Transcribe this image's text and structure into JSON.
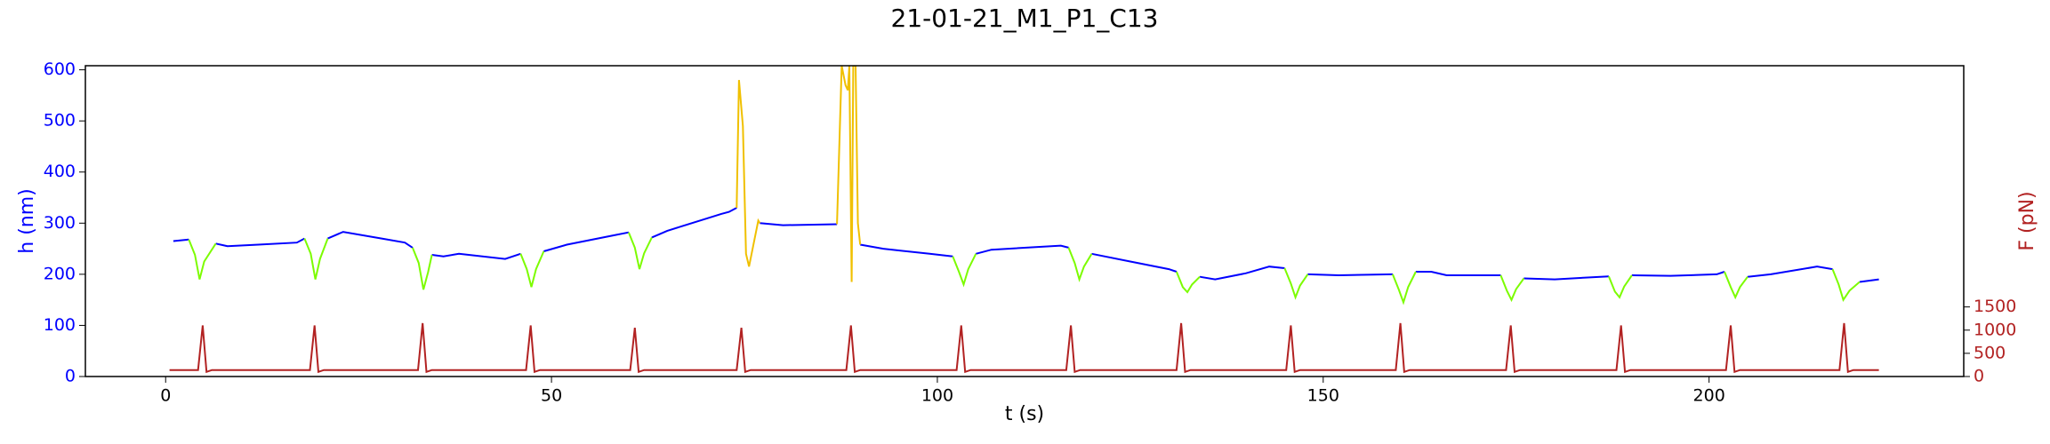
{
  "chart_data": {
    "type": "line",
    "title": "21-01-21_M1_P1_C13",
    "x_label": "t (s)",
    "y_label": "h (nm)",
    "y2_label": "F (pN)",
    "xlim": [
      -10.4,
      233
    ],
    "xticks": [
      0,
      50,
      100,
      150,
      200
    ],
    "ylim": [
      0,
      608
    ],
    "yticks": [
      0,
      100,
      200,
      300,
      400,
      500,
      600
    ],
    "y2lim": [
      0,
      6700
    ],
    "y2ticks": [
      0,
      500,
      1000,
      1500
    ],
    "y_color": "#0000ff",
    "y2_color": "#b22222",
    "series": [
      {
        "color": "#0000ff",
        "axis": "y",
        "x": [
          1,
          3,
          5,
          6.5,
          8,
          12,
          17,
          18,
          20,
          21,
          23,
          28,
          31,
          32,
          33,
          34.5,
          36,
          38,
          44,
          46,
          47,
          49,
          52,
          58,
          60,
          61,
          63,
          65,
          72,
          73,
          74,
          75.5,
          77,
          80,
          87,
          88.5,
          90,
          93,
          99,
          102,
          103,
          105,
          107,
          116,
          117,
          118,
          120,
          125,
          130,
          131,
          132,
          134,
          136,
          140,
          143,
          145,
          146,
          148,
          152,
          159,
          160,
          162,
          164,
          166,
          173,
          174,
          176,
          180,
          187,
          188,
          190,
          195,
          201,
          202,
          203,
          205,
          208,
          214,
          216,
          217,
          219.5,
          222
        ],
        "values": [
          265,
          268,
          null,
          260,
          255,
          258,
          262,
          270,
          null,
          270,
          283,
          270,
          262,
          252,
          null,
          238,
          235,
          240,
          230,
          240,
          null,
          245,
          258,
          276,
          282,
          null,
          272,
          285,
          318,
          322,
          330,
          null,
          300,
          296,
          298,
          null,
          258,
          250,
          240,
          235,
          null,
          240,
          248,
          256,
          252,
          null,
          240,
          225,
          210,
          205,
          null,
          195,
          190,
          202,
          215,
          212,
          null,
          200,
          198,
          200,
          null,
          205,
          205,
          198,
          198,
          null,
          192,
          190,
          196,
          null,
          198,
          197,
          200,
          205,
          null,
          195,
          200,
          215,
          210,
          null,
          185,
          190
        ]
      },
      {
        "color": "#7cfc00",
        "axis": "y",
        "x": [
          3,
          3.8,
          4.4,
          5,
          6.5,
          7,
          18,
          18.8,
          19.4,
          20,
          21,
          22,
          32,
          32.8,
          33.4,
          34,
          34.5,
          35,
          46,
          46.8,
          47.4,
          48,
          49,
          50,
          60,
          60.8,
          61.4,
          62,
          63,
          64,
          102,
          102.8,
          103.4,
          104,
          105,
          106,
          117,
          117.8,
          118.4,
          119,
          120,
          121,
          131,
          131.8,
          132.4,
          133,
          134,
          135,
          145,
          145.8,
          146.4,
          147,
          148,
          149,
          159,
          159.8,
          160.4,
          161,
          162,
          163,
          173,
          173.8,
          174.4,
          175,
          176,
          177,
          187,
          187.8,
          188.4,
          189,
          190,
          191,
          202,
          202.8,
          203.4,
          204,
          205,
          206,
          216,
          216.8,
          217.4,
          218.2,
          219.5
        ],
        "values": [
          268,
          238,
          190,
          225,
          260,
          null,
          270,
          240,
          190,
          230,
          270,
          null,
          252,
          222,
          170,
          204,
          238,
          null,
          240,
          210,
          175,
          210,
          245,
          null,
          282,
          252,
          210,
          241,
          272,
          null,
          235,
          205,
          180,
          210,
          240,
          null,
          252,
          222,
          190,
          215,
          240,
          null,
          205,
          175,
          165,
          180,
          195,
          null,
          212,
          182,
          155,
          178,
          200,
          null,
          200,
          170,
          145,
          175,
          205,
          null,
          198,
          168,
          150,
          171,
          192,
          null,
          196,
          166,
          155,
          176,
          198,
          null,
          205,
          175,
          155,
          175,
          195,
          null,
          210,
          180,
          150,
          168,
          185
        ]
      },
      {
        "color": "#f0c000",
        "axis": "y",
        "x": [
          74,
          74.3,
          74.8,
          75.2,
          75.6,
          76.2,
          76.8,
          77,
          82,
          87,
          87.6,
          88.1,
          88.4,
          88.6,
          88.9,
          89.1,
          89.4,
          89.7,
          90
        ],
        "values": [
          330,
          580,
          490,
          240,
          215,
          260,
          305,
          300,
          null,
          298,
          608,
          570,
          560,
          608,
          185,
          608,
          608,
          300,
          258
        ]
      },
      {
        "color": "#b22222",
        "axis": "y2",
        "x": [
          0.5,
          4.2,
          4.8,
          5.3,
          6,
          18.7,
          19.3,
          19.8,
          20.5,
          32.7,
          33.3,
          33.8,
          34.5,
          46.7,
          47.3,
          47.8,
          48.5,
          60.2,
          60.8,
          61.3,
          62,
          74,
          74.6,
          75.1,
          75.8,
          88.2,
          88.8,
          89.3,
          90,
          102.5,
          103.1,
          103.6,
          104.3,
          116.7,
          117.3,
          117.8,
          118.5,
          131,
          131.6,
          132.1,
          132.8,
          145.2,
          145.8,
          146.3,
          147,
          159.4,
          160,
          160.5,
          161.2,
          173.7,
          174.3,
          174.8,
          175.5,
          188,
          188.6,
          189.1,
          189.8,
          202.2,
          202.8,
          203.3,
          204,
          216.9,
          217.5,
          218,
          218.7,
          222
        ],
        "values": [
          140,
          140,
          1100,
          100,
          140,
          140,
          1100,
          100,
          140,
          140,
          1150,
          100,
          140,
          140,
          1100,
          100,
          140,
          140,
          1050,
          100,
          140,
          140,
          1050,
          100,
          140,
          140,
          1100,
          100,
          140,
          140,
          1100,
          100,
          140,
          140,
          1100,
          100,
          140,
          140,
          1150,
          100,
          140,
          140,
          1100,
          100,
          140,
          140,
          1150,
          100,
          140,
          140,
          1100,
          100,
          140,
          140,
          1100,
          100,
          140,
          140,
          1100,
          100,
          140,
          140,
          1150,
          100,
          140,
          140
        ]
      }
    ]
  }
}
